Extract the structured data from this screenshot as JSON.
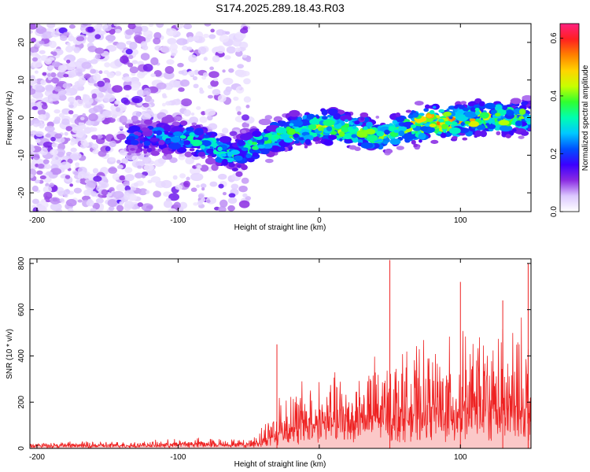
{
  "chart_data": [
    {
      "type": "heatmap",
      "title": "S174.2025.289.18.43.R03",
      "xlabel": "Height of straight line (km)",
      "ylabel": "Frequency (Hz)",
      "xlim": [
        -205,
        150
      ],
      "ylim": [
        -25,
        25
      ],
      "x_ticks": [
        -200,
        -100,
        0,
        100
      ],
      "y_ticks": [
        -20,
        -10,
        0,
        10,
        20
      ],
      "colorbar": {
        "label": "Normalized spectral amplitude",
        "range": [
          0.0,
          0.65
        ],
        "ticks": [
          0.0,
          0.2,
          0.4,
          0.6
        ],
        "colors": [
          "#ffffff",
          "#dcc8ff",
          "#8a2be2",
          "#3b00ff",
          "#0050ff",
          "#00c8ff",
          "#00ffb0",
          "#30ff30",
          "#c8ff00",
          "#ffd400",
          "#ff8000",
          "#ff2020",
          "#ff2080"
        ]
      },
      "ridge": {
        "x": [
          -135,
          -100,
          -80,
          -60,
          -50,
          -40,
          -20,
          0,
          20,
          40,
          60,
          80,
          100,
          120,
          150
        ],
        "center_hz": [
          -5,
          -5,
          -7,
          -10,
          -8,
          -6,
          -4,
          -2,
          -3,
          -5,
          -3,
          -1,
          -1,
          0,
          0
        ],
        "peak_amplitude": [
          0.15,
          0.25,
          0.28,
          0.28,
          0.3,
          0.3,
          0.32,
          0.4,
          0.38,
          0.35,
          0.38,
          0.55,
          0.45,
          0.4,
          0.38
        ]
      },
      "noise_region_x": [
        -205,
        -50
      ]
    },
    {
      "type": "line",
      "xlabel": "Height of straight line (km)",
      "ylabel": "SNR (10 * v/v)",
      "xlim": [
        -205,
        150
      ],
      "ylim": [
        0,
        820
      ],
      "x_ticks": [
        -200,
        -100,
        0,
        100
      ],
      "y_ticks": [
        0,
        200,
        400,
        600,
        800
      ],
      "color": "#ee2222",
      "envelope": {
        "x": [
          -205,
          -120,
          -100,
          -80,
          -60,
          -50,
          -40,
          -30,
          -20,
          -10,
          0,
          20,
          40,
          60,
          80,
          100,
          120,
          150
        ],
        "baseline": [
          15,
          15,
          20,
          22,
          20,
          20,
          35,
          60,
          90,
          110,
          130,
          150,
          160,
          170,
          175,
          180,
          185,
          190
        ],
        "max": [
          30,
          35,
          45,
          50,
          45,
          40,
          110,
          250,
          300,
          320,
          340,
          360,
          430,
          450,
          480,
          520,
          560,
          600
        ]
      },
      "spikes": [
        {
          "x": -30,
          "y": 450
        },
        {
          "x": 50,
          "y": 815
        },
        {
          "x": 100,
          "y": 720
        },
        {
          "x": 130,
          "y": 640
        },
        {
          "x": 148,
          "y": 800
        }
      ]
    }
  ]
}
